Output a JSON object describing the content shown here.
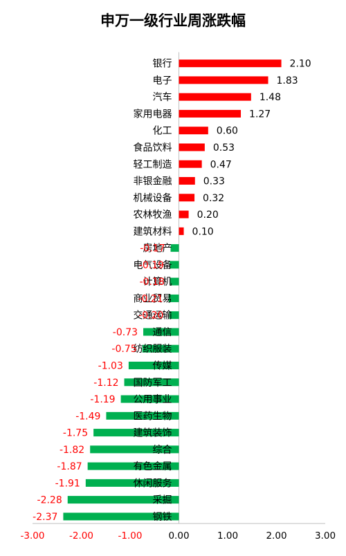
{
  "chart_data": {
    "type": "bar",
    "orientation": "horizontal",
    "title": "申万一级行业周涨跌幅",
    "categories": [
      "银行",
      "电子",
      "汽车",
      "家用电器",
      "化工",
      "食品饮料",
      "轻工制造",
      "非银金融",
      "机械设备",
      "农林牧渔",
      "建筑材料",
      "房地产",
      "电气设备",
      "计算机",
      "商业贸易",
      "交通运输",
      "通信",
      "纺织服装",
      "传媒",
      "国防军工",
      "公用事业",
      "医药生物",
      "建筑装饰",
      "综合",
      "有色金属",
      "休闲服务",
      "采掘",
      "钢铁"
    ],
    "values": [
      2.1,
      1.83,
      1.48,
      1.27,
      0.6,
      0.53,
      0.47,
      0.33,
      0.32,
      0.2,
      0.1,
      -0.17,
      -0.19,
      -0.18,
      -0.21,
      -0.2,
      -0.73,
      -0.75,
      -1.03,
      -1.12,
      -1.19,
      -1.49,
      -1.75,
      -1.82,
      -1.87,
      -1.91,
      -2.28,
      -2.37
    ],
    "value_labels": [
      "2.10",
      "1.83",
      "1.48",
      "1.27",
      "0.60",
      "0.53",
      "0.47",
      "0.33",
      "0.32",
      "0.20",
      "0.10",
      "-0.17",
      "-0.19",
      "-0.18",
      "-0.21",
      "-0.20",
      "-0.73",
      "-0.75",
      "-1.03",
      "-1.12",
      "-1.19",
      "-1.49",
      "-1.75",
      "-1.82",
      "-1.87",
      "-1.91",
      "-2.28",
      "-2.37"
    ],
    "xlim": [
      -3.0,
      3.0
    ],
    "xticks": [
      -3.0,
      -2.0,
      -1.0,
      0.0,
      1.0,
      2.0,
      3.0
    ],
    "xtick_labels": [
      "-3.00",
      "-2.00",
      "-1.00",
      "0.00",
      "1.00",
      "2.00",
      "3.00"
    ],
    "grid": false,
    "colors": {
      "positive_bar": "#ff0000",
      "negative_bar": "#00b050",
      "positive_label": "#000000",
      "negative_label": "#ff0000",
      "axis": "#bfbfbf"
    }
  }
}
